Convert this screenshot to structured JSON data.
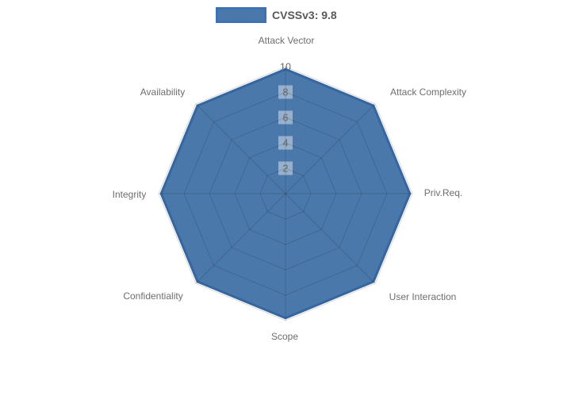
{
  "legend": {
    "label": "CVSSv3: 9.8"
  },
  "chart_data": {
    "type": "radar",
    "title": "",
    "categories": [
      "Attack Vector",
      "Attack Complexity",
      "Priv.Req.",
      "User Interaction",
      "Scope",
      "Confidentiality",
      "Integrity",
      "Availability"
    ],
    "series": [
      {
        "name": "CVSSv3: 9.8",
        "values": [
          9.8,
          9.8,
          9.8,
          9.8,
          9.8,
          9.8,
          9.8,
          9.8
        ]
      }
    ],
    "rmin": 0,
    "rmax": 10,
    "ticks": [
      10,
      8,
      6,
      4,
      2
    ],
    "grid": true,
    "legend_position": "top",
    "colors": {
      "fill": "#4b78aa",
      "stroke": "#36669f",
      "grid": "rgba(0,0,0,0.15)",
      "tick_backdrop": "rgba(255,255,255,0.42)",
      "tick_text": "#666666",
      "axis_label": "#6e6e6e",
      "legend_text": "#595959",
      "background": "#ffffff"
    }
  }
}
